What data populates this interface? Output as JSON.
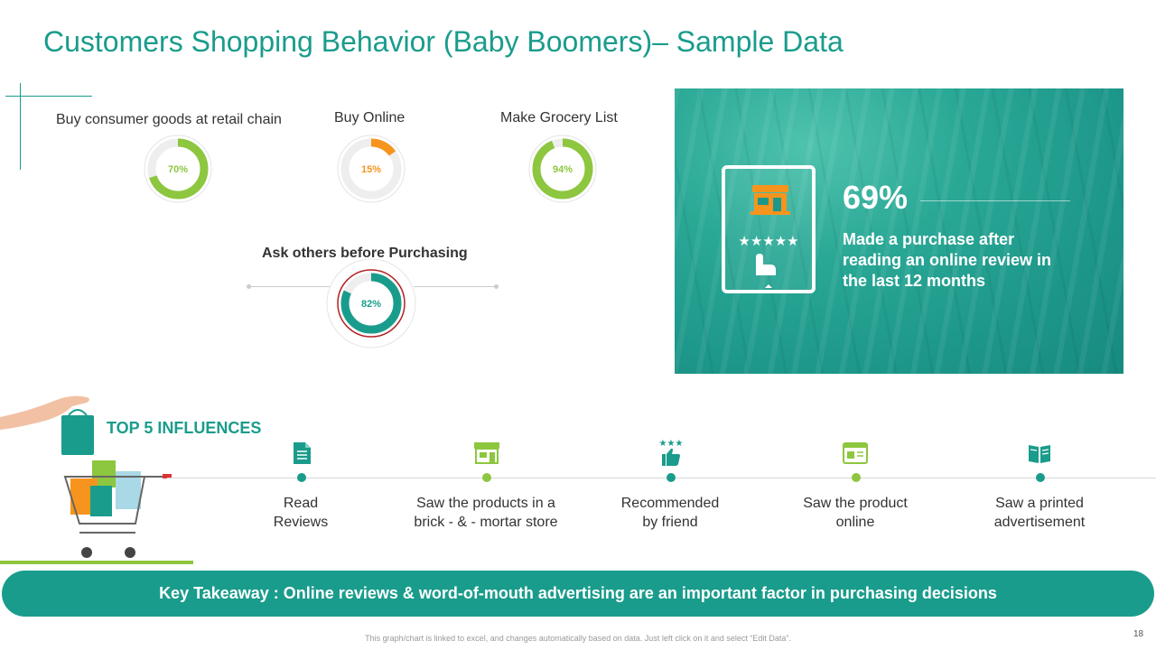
{
  "title": "Customers Shopping Behavior (Baby Boomers)– Sample Data",
  "stats": [
    {
      "label": "Buy consumer  goods at retail chain",
      "pct_label": "70%",
      "value": 70,
      "color": "#8dc63f"
    },
    {
      "label": "Buy Online",
      "pct_label": "15%",
      "value": 15,
      "color": "#f7941d"
    },
    {
      "label": "Make Grocery List",
      "pct_label": "94%",
      "value": 94,
      "color": "#8dc63f"
    }
  ],
  "ask": {
    "label": "Ask others before Purchasing",
    "pct_label": "82%",
    "value": 82,
    "color": "#1a9c8c",
    "ring_color": "#b22222"
  },
  "promo": {
    "percent": "69%",
    "text": "Made a purchase after reading an online review in the last 12 months",
    "stars": "★★★★★",
    "accent": "#f7941d"
  },
  "influences": {
    "title": "TOP 5 INFLUENCES",
    "items": [
      {
        "line1": "Read",
        "line2": "Reviews",
        "icon": "document-checklist-icon",
        "color": "#1a9c8c"
      },
      {
        "line1": "Saw the products  in a",
        "line2": "brick - & - mortar store",
        "icon": "storefront-icon",
        "color": "#8dc63f"
      },
      {
        "line1": "Recommended",
        "line2": "by friend",
        "icon": "thumbs-up-stars-icon",
        "color": "#1a9c8c"
      },
      {
        "line1": "Saw the product",
        "line2": "online",
        "icon": "browser-window-icon",
        "color": "#8dc63f"
      },
      {
        "line1": "Saw a printed",
        "line2": "advertisement",
        "icon": "open-magazine-icon",
        "color": "#1a9c8c"
      }
    ]
  },
  "takeaway": "Key Takeaway : Online reviews & word-of-mouth advertising are an important factor in purchasing decisions",
  "footer": "This graph/chart is linked to excel, and changes automatically based on data. Just left click on it and select “Edit Data”.",
  "page_number": "18"
}
